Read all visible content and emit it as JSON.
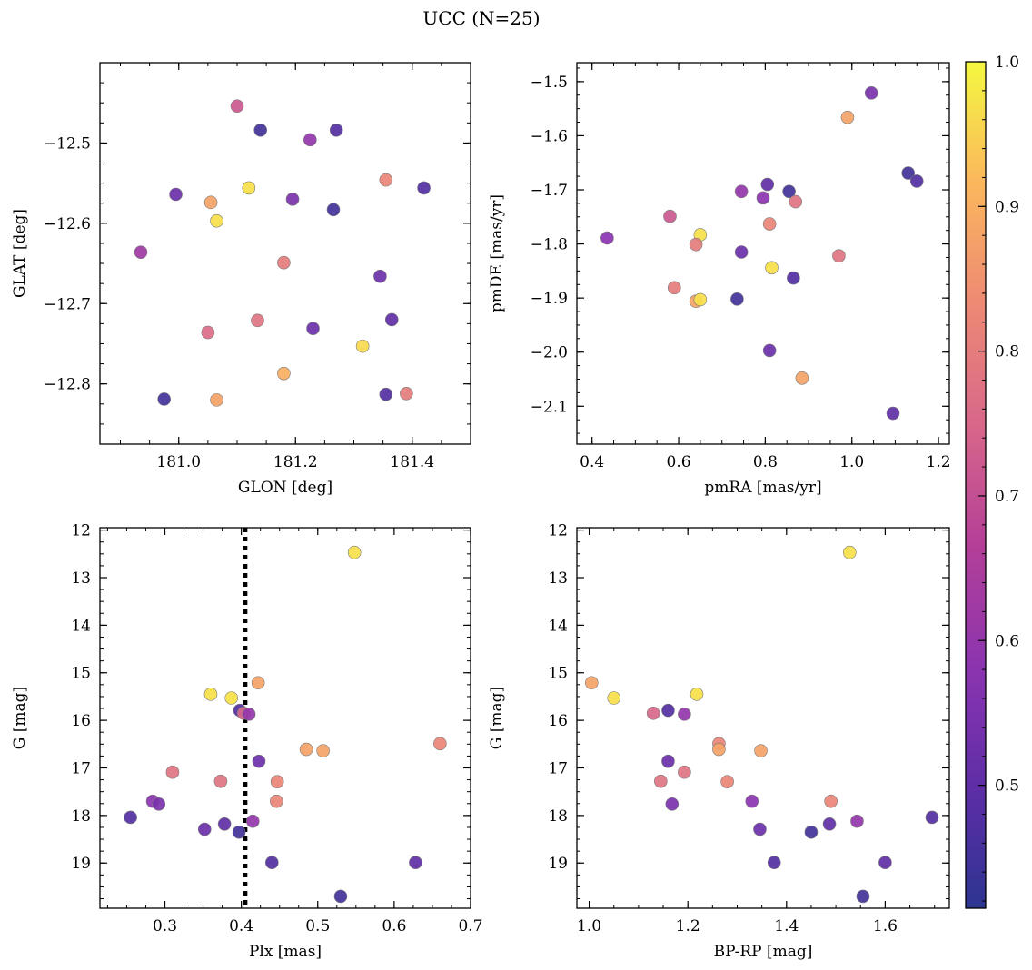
{
  "figure": {
    "suptitle": "UCC (N=25)"
  },
  "colorbar": {
    "colormap": "plasma",
    "range": [
      0.415,
      1.0
    ],
    "ticks": [
      "0.5",
      "0.6",
      "0.7",
      "0.8",
      "0.9",
      "1.0"
    ],
    "tick_values": [
      0.5,
      0.6,
      0.7,
      0.8,
      0.9,
      1.0
    ]
  },
  "chart_data": [
    {
      "id": "sky",
      "type": "scatter",
      "xlabel": "GLON [deg]",
      "ylabel": "GLAT [deg]",
      "xlim": [
        180.865,
        181.5
      ],
      "ylim": [
        -12.875,
        -12.4
      ],
      "y_inverted": false,
      "xticks": [
        181.0,
        181.2,
        181.4
      ],
      "xtick_labels": [
        "181.0",
        "181.2",
        "181.4"
      ],
      "yticks": [
        -12.5,
        -12.6,
        -12.7,
        -12.8
      ],
      "ytick_labels": [
        "−12.5",
        "−12.6",
        "−12.7",
        "−12.8"
      ],
      "points": [
        {
          "x": 181.1,
          "y": -12.454,
          "c": 0.72
        },
        {
          "x": 181.14,
          "y": -12.484,
          "c": 0.45
        },
        {
          "x": 181.27,
          "y": -12.484,
          "c": 0.48
        },
        {
          "x": 181.225,
          "y": -12.496,
          "c": 0.6
        },
        {
          "x": 181.355,
          "y": -12.546,
          "c": 0.82
        },
        {
          "x": 181.42,
          "y": -12.556,
          "c": 0.48
        },
        {
          "x": 181.12,
          "y": -12.556,
          "c": 0.97
        },
        {
          "x": 180.995,
          "y": -12.564,
          "c": 0.52
        },
        {
          "x": 181.055,
          "y": -12.574,
          "c": 0.88
        },
        {
          "x": 181.195,
          "y": -12.57,
          "c": 0.55
        },
        {
          "x": 181.265,
          "y": -12.583,
          "c": 0.45
        },
        {
          "x": 181.065,
          "y": -12.597,
          "c": 0.97
        },
        {
          "x": 180.935,
          "y": -12.636,
          "c": 0.62
        },
        {
          "x": 181.18,
          "y": -12.649,
          "c": 0.8
        },
        {
          "x": 181.345,
          "y": -12.666,
          "c": 0.52
        },
        {
          "x": 181.135,
          "y": -12.721,
          "c": 0.78
        },
        {
          "x": 181.05,
          "y": -12.736,
          "c": 0.76
        },
        {
          "x": 181.23,
          "y": -12.731,
          "c": 0.52
        },
        {
          "x": 181.365,
          "y": -12.72,
          "c": 0.5
        },
        {
          "x": 181.315,
          "y": -12.753,
          "c": 0.96
        },
        {
          "x": 181.18,
          "y": -12.787,
          "c": 0.9
        },
        {
          "x": 180.975,
          "y": -12.819,
          "c": 0.45
        },
        {
          "x": 181.065,
          "y": -12.82,
          "c": 0.88
        },
        {
          "x": 181.355,
          "y": -12.813,
          "c": 0.48
        },
        {
          "x": 181.39,
          "y": -12.812,
          "c": 0.8
        }
      ]
    },
    {
      "id": "pm",
      "type": "scatter",
      "xlabel": "pmRA [mas/yr]",
      "ylabel": "pmDE [mas/yr]",
      "xlim": [
        0.365,
        1.225
      ],
      "ylim": [
        -2.17,
        -1.465
      ],
      "y_inverted": false,
      "xticks": [
        0.4,
        0.6,
        0.8,
        1.0,
        1.2
      ],
      "xtick_labels": [
        "0.4",
        "0.6",
        "0.8",
        "1.0",
        "1.2"
      ],
      "yticks": [
        -1.5,
        -1.6,
        -1.7,
        -1.8,
        -1.9,
        -2.0,
        -2.1
      ],
      "ytick_labels": [
        "−1.5",
        "−1.6",
        "−1.7",
        "−1.8",
        "−1.9",
        "−2.0",
        "−2.1"
      ],
      "points": [
        {
          "x": 1.045,
          "y": -1.521,
          "c": 0.55
        },
        {
          "x": 0.99,
          "y": -1.566,
          "c": 0.88
        },
        {
          "x": 1.13,
          "y": -1.669,
          "c": 0.45
        },
        {
          "x": 1.15,
          "y": -1.684,
          "c": 0.48
        },
        {
          "x": 0.805,
          "y": -1.69,
          "c": 0.5
        },
        {
          "x": 0.745,
          "y": -1.703,
          "c": 0.6
        },
        {
          "x": 0.855,
          "y": -1.703,
          "c": 0.45
        },
        {
          "x": 0.795,
          "y": -1.715,
          "c": 0.58
        },
        {
          "x": 0.87,
          "y": -1.722,
          "c": 0.78
        },
        {
          "x": 0.58,
          "y": -1.749,
          "c": 0.72
        },
        {
          "x": 0.81,
          "y": -1.763,
          "c": 0.82
        },
        {
          "x": 0.435,
          "y": -1.789,
          "c": 0.58
        },
        {
          "x": 0.65,
          "y": -1.783,
          "c": 0.97
        },
        {
          "x": 0.64,
          "y": -1.801,
          "c": 0.8
        },
        {
          "x": 0.745,
          "y": -1.815,
          "c": 0.52
        },
        {
          "x": 0.97,
          "y": -1.822,
          "c": 0.78
        },
        {
          "x": 0.815,
          "y": -1.844,
          "c": 0.97
        },
        {
          "x": 0.865,
          "y": -1.863,
          "c": 0.48
        },
        {
          "x": 0.59,
          "y": -1.881,
          "c": 0.8
        },
        {
          "x": 0.735,
          "y": -1.902,
          "c": 0.45
        },
        {
          "x": 0.64,
          "y": -1.906,
          "c": 0.88
        },
        {
          "x": 0.65,
          "y": -1.903,
          "c": 0.97
        },
        {
          "x": 0.81,
          "y": -1.997,
          "c": 0.52
        },
        {
          "x": 0.885,
          "y": -2.048,
          "c": 0.88
        },
        {
          "x": 1.095,
          "y": -2.113,
          "c": 0.5
        }
      ]
    },
    {
      "id": "plx",
      "type": "scatter",
      "xlabel": "Plx [mas]",
      "ylabel": "G [mag]",
      "xlim": [
        0.215,
        0.7
      ],
      "ylim": [
        19.95,
        11.95
      ],
      "y_inverted": true,
      "vline": {
        "x": 0.405,
        "style": "dotted"
      },
      "xticks": [
        0.3,
        0.4,
        0.5,
        0.6,
        0.7
      ],
      "xtick_labels": [
        "0.3",
        "0.4",
        "0.5",
        "0.6",
        "0.7"
      ],
      "yticks": [
        12,
        13,
        14,
        15,
        16,
        17,
        18,
        19
      ],
      "ytick_labels": [
        "12",
        "13",
        "14",
        "15",
        "16",
        "17",
        "18",
        "19"
      ],
      "points": [
        {
          "x": 0.548,
          "y": 12.47,
          "c": 0.97
        },
        {
          "x": 0.422,
          "y": 15.21,
          "c": 0.88
        },
        {
          "x": 0.36,
          "y": 15.45,
          "c": 0.97
        },
        {
          "x": 0.387,
          "y": 15.53,
          "c": 0.97
        },
        {
          "x": 0.398,
          "y": 15.79,
          "c": 0.48
        },
        {
          "x": 0.403,
          "y": 15.85,
          "c": 0.75
        },
        {
          "x": 0.41,
          "y": 15.87,
          "c": 0.6
        },
        {
          "x": 0.66,
          "y": 16.49,
          "c": 0.82
        },
        {
          "x": 0.485,
          "y": 16.61,
          "c": 0.88
        },
        {
          "x": 0.507,
          "y": 16.64,
          "c": 0.88
        },
        {
          "x": 0.423,
          "y": 16.86,
          "c": 0.52
        },
        {
          "x": 0.31,
          "y": 17.09,
          "c": 0.78
        },
        {
          "x": 0.373,
          "y": 17.28,
          "c": 0.78
        },
        {
          "x": 0.447,
          "y": 17.29,
          "c": 0.82
        },
        {
          "x": 0.446,
          "y": 17.7,
          "c": 0.82
        },
        {
          "x": 0.284,
          "y": 17.7,
          "c": 0.58
        },
        {
          "x": 0.292,
          "y": 17.76,
          "c": 0.55
        },
        {
          "x": 0.255,
          "y": 18.04,
          "c": 0.48
        },
        {
          "x": 0.415,
          "y": 18.12,
          "c": 0.6
        },
        {
          "x": 0.378,
          "y": 18.18,
          "c": 0.5
        },
        {
          "x": 0.352,
          "y": 18.29,
          "c": 0.52
        },
        {
          "x": 0.397,
          "y": 18.35,
          "c": 0.45
        },
        {
          "x": 0.44,
          "y": 18.99,
          "c": 0.48
        },
        {
          "x": 0.628,
          "y": 18.99,
          "c": 0.5
        },
        {
          "x": 0.53,
          "y": 19.7,
          "c": 0.45
        }
      ]
    },
    {
      "id": "cmd",
      "type": "scatter",
      "xlabel": "BP-RP [mag]",
      "ylabel": "G [mag]",
      "xlim": [
        0.975,
        1.73
      ],
      "ylim": [
        19.95,
        11.95
      ],
      "y_inverted": true,
      "xticks": [
        1.0,
        1.2,
        1.4,
        1.6
      ],
      "xtick_labels": [
        "1.0",
        "1.2",
        "1.4",
        "1.6"
      ],
      "yticks": [
        12,
        13,
        14,
        15,
        16,
        17,
        18,
        19
      ],
      "ytick_labels": [
        "12",
        "13",
        "14",
        "15",
        "16",
        "17",
        "18",
        "19"
      ],
      "points": [
        {
          "x": 1.528,
          "y": 12.47,
          "c": 0.97
        },
        {
          "x": 1.005,
          "y": 15.21,
          "c": 0.88
        },
        {
          "x": 1.218,
          "y": 15.45,
          "c": 0.97
        },
        {
          "x": 1.05,
          "y": 15.53,
          "c": 0.97
        },
        {
          "x": 1.16,
          "y": 15.79,
          "c": 0.48
        },
        {
          "x": 1.13,
          "y": 15.85,
          "c": 0.75
        },
        {
          "x": 1.193,
          "y": 15.87,
          "c": 0.6
        },
        {
          "x": 1.263,
          "y": 16.49,
          "c": 0.82
        },
        {
          "x": 1.263,
          "y": 16.61,
          "c": 0.88
        },
        {
          "x": 1.348,
          "y": 16.64,
          "c": 0.88
        },
        {
          "x": 1.16,
          "y": 16.86,
          "c": 0.52
        },
        {
          "x": 1.193,
          "y": 17.09,
          "c": 0.78
        },
        {
          "x": 1.145,
          "y": 17.28,
          "c": 0.78
        },
        {
          "x": 1.28,
          "y": 17.29,
          "c": 0.82
        },
        {
          "x": 1.49,
          "y": 17.7,
          "c": 0.82
        },
        {
          "x": 1.33,
          "y": 17.7,
          "c": 0.58
        },
        {
          "x": 1.168,
          "y": 17.76,
          "c": 0.55
        },
        {
          "x": 1.695,
          "y": 18.04,
          "c": 0.48
        },
        {
          "x": 1.543,
          "y": 18.12,
          "c": 0.6
        },
        {
          "x": 1.487,
          "y": 18.18,
          "c": 0.5
        },
        {
          "x": 1.346,
          "y": 18.29,
          "c": 0.52
        },
        {
          "x": 1.45,
          "y": 18.35,
          "c": 0.45
        },
        {
          "x": 1.375,
          "y": 18.99,
          "c": 0.48
        },
        {
          "x": 1.6,
          "y": 18.99,
          "c": 0.5
        },
        {
          "x": 1.555,
          "y": 19.7,
          "c": 0.45
        }
      ]
    }
  ]
}
